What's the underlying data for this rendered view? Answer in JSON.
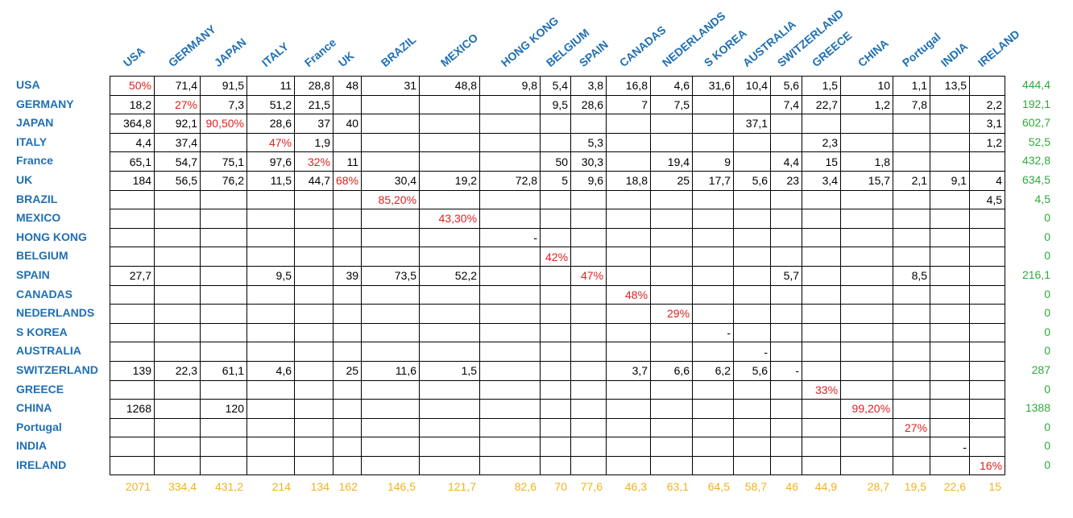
{
  "columns": [
    "USA",
    "GERMANY",
    "JAPAN",
    "ITALY",
    "France",
    "UK",
    "BRAZIL",
    "MEXICO",
    "HONG KONG",
    "BELGIUM",
    "SPAIN",
    "CANADAS",
    "NEDERLANDS",
    "S KOREA",
    "AUSTRALIA",
    "SWITZERLAND",
    "GREECE",
    "CHINA",
    "Portugal",
    "INDIA",
    "IRELAND"
  ],
  "rows": [
    {
      "label": "USA",
      "cells": [
        "50%",
        "71,4",
        "91,5",
        "11",
        "28,8",
        "48",
        "31",
        "48,8",
        "9,8",
        "5,4",
        "3,8",
        "16,8",
        "4,6",
        "31,6",
        "10,4",
        "5,6",
        "1,5",
        "10",
        "1,1",
        "13,5",
        ""
      ],
      "total": "444,4"
    },
    {
      "label": "GERMANY",
      "cells": [
        "18,2",
        "27%",
        "7,3",
        "51,2",
        "21,5",
        "",
        "",
        "",
        "",
        "9,5",
        "28,6",
        "7",
        "7,5",
        "",
        "",
        "7,4",
        "22,7",
        "1,2",
        "7,8",
        "",
        "2,2"
      ],
      "total": "192,1"
    },
    {
      "label": "JAPAN",
      "cells": [
        "364,8",
        "92,1",
        "90,50%",
        "28,6",
        "37",
        "40",
        "",
        "",
        "",
        "",
        "",
        "",
        "",
        "",
        "37,1",
        "",
        "",
        "",
        "",
        "",
        "3,1"
      ],
      "total": "602,7"
    },
    {
      "label": "ITALY",
      "cells": [
        "4,4",
        "37,4",
        "",
        "47%",
        "1,9",
        "",
        "",
        "",
        "",
        "",
        "5,3",
        "",
        "",
        "",
        "",
        "",
        "2,3",
        "",
        "",
        "",
        "1,2"
      ],
      "total": "52,5"
    },
    {
      "label": "France",
      "cells": [
        "65,1",
        "54,7",
        "75,1",
        "97,6",
        "32%",
        "11",
        "",
        "",
        "",
        "50",
        "30,3",
        "",
        "19,4",
        "9",
        "",
        "4,4",
        "15",
        "1,8",
        "",
        "",
        ""
      ],
      "total": "432,8"
    },
    {
      "label": "UK",
      "cells": [
        "184",
        "56,5",
        "76,2",
        "11,5",
        "44,7",
        "68%",
        "30,4",
        "19,2",
        "72,8",
        "5",
        "9,6",
        "18,8",
        "25",
        "17,7",
        "5,6",
        "23",
        "3,4",
        "15,7",
        "2,1",
        "9,1",
        "4"
      ],
      "total": "634,5"
    },
    {
      "label": "BRAZIL",
      "cells": [
        "",
        "",
        "",
        "",
        "",
        "",
        "85,20%",
        "",
        "",
        "",
        "",
        "",
        "",
        "",
        "",
        "",
        "",
        "",
        "",
        "",
        "4,5"
      ],
      "total": "4,5"
    },
    {
      "label": "MEXICO",
      "cells": [
        "",
        "",
        "",
        "",
        "",
        "",
        "",
        "43,30%",
        "",
        "",
        "",
        "",
        "",
        "",
        "",
        "",
        "",
        "",
        "",
        "",
        ""
      ],
      "total": "0"
    },
    {
      "label": "HONG KONG",
      "cells": [
        "",
        "",
        "",
        "",
        "",
        "",
        "",
        "",
        "-",
        "",
        "",
        "",
        "",
        "",
        "",
        "",
        "",
        "",
        "",
        "",
        ""
      ],
      "total": "0"
    },
    {
      "label": "BELGIUM",
      "cells": [
        "",
        "",
        "",
        "",
        "",
        "",
        "",
        "",
        "",
        "42%",
        "",
        "",
        "",
        "",
        "",
        "",
        "",
        "",
        "",
        "",
        ""
      ],
      "total": "0"
    },
    {
      "label": "SPAIN",
      "cells": [
        "27,7",
        "",
        "",
        "9,5",
        "",
        "39",
        "73,5",
        "52,2",
        "",
        "",
        "47%",
        "",
        "",
        "",
        "",
        "5,7",
        "",
        "",
        "8,5",
        "",
        ""
      ],
      "total": "216,1"
    },
    {
      "label": "CANADAS",
      "cells": [
        "",
        "",
        "",
        "",
        "",
        "",
        "",
        "",
        "",
        "",
        "",
        "48%",
        "",
        "",
        "",
        "",
        "",
        "",
        "",
        "",
        ""
      ],
      "total": "0"
    },
    {
      "label": "NEDERLANDS",
      "cells": [
        "",
        "",
        "",
        "",
        "",
        "",
        "",
        "",
        "",
        "",
        "",
        "",
        "29%",
        "",
        "",
        "",
        "",
        "",
        "",
        "",
        ""
      ],
      "total": "0"
    },
    {
      "label": "S KOREA",
      "cells": [
        "",
        "",
        "",
        "",
        "",
        "",
        "",
        "",
        "",
        "",
        "",
        "",
        "",
        "-",
        "",
        "",
        "",
        "",
        "",
        "",
        ""
      ],
      "total": "0"
    },
    {
      "label": "AUSTRALIA",
      "cells": [
        "",
        "",
        "",
        "",
        "",
        "",
        "",
        "",
        "",
        "",
        "",
        "",
        "",
        "",
        "-",
        "",
        "",
        "",
        "",
        "",
        ""
      ],
      "total": "0"
    },
    {
      "label": "SWITZERLAND",
      "cells": [
        "139",
        "22,3",
        "61,1",
        "4,6",
        "",
        "25",
        "11,6",
        "1,5",
        "",
        "",
        "",
        "3,7",
        "6,6",
        "6,2",
        "5,6",
        "-",
        "",
        "",
        "",
        "",
        ""
      ],
      "total": "287"
    },
    {
      "label": "GREECE",
      "cells": [
        "",
        "",
        "",
        "",
        "",
        "",
        "",
        "",
        "",
        "",
        "",
        "",
        "",
        "",
        "",
        "",
        "33%",
        "",
        "",
        "",
        ""
      ],
      "total": "0"
    },
    {
      "label": "CHINA",
      "cells": [
        "1268",
        "",
        "120",
        "",
        "",
        "",
        "",
        "",
        "",
        "",
        "",
        "",
        "",
        "",
        "",
        "",
        "",
        "99,20%",
        "",
        "",
        ""
      ],
      "total": "1388"
    },
    {
      "label": "Portugal",
      "cells": [
        "",
        "",
        "",
        "",
        "",
        "",
        "",
        "",
        "",
        "",
        "",
        "",
        "",
        "",
        "",
        "",
        "",
        "",
        "27%",
        "",
        ""
      ],
      "total": "0"
    },
    {
      "label": "INDIA",
      "cells": [
        "",
        "",
        "",
        "",
        "",
        "",
        "",
        "",
        "",
        "",
        "",
        "",
        "",
        "",
        "",
        "",
        "",
        "",
        "",
        "-",
        ""
      ],
      "total": "0"
    },
    {
      "label": "IRELAND",
      "cells": [
        "",
        "",
        "",
        "",
        "",
        "",
        "",
        "",
        "",
        "",
        "",
        "",
        "",
        "",
        "",
        "",
        "",
        "",
        "",
        "",
        "16%"
      ],
      "total": "0"
    }
  ],
  "column_totals": [
    "2071",
    "334,4",
    "431,2",
    "214",
    "134",
    "162",
    "146,5",
    "121,7",
    "82,6",
    "70",
    "77,6",
    "46,3",
    "63,1",
    "64,5",
    "58,7",
    "46",
    "44,9",
    "28,7",
    "19,5",
    "22,6",
    "15"
  ],
  "colors": {
    "header": "#1f6fb4",
    "highlight": "#e02020",
    "row_total": "#2eaa3c",
    "column_total": "#f0b21e"
  }
}
